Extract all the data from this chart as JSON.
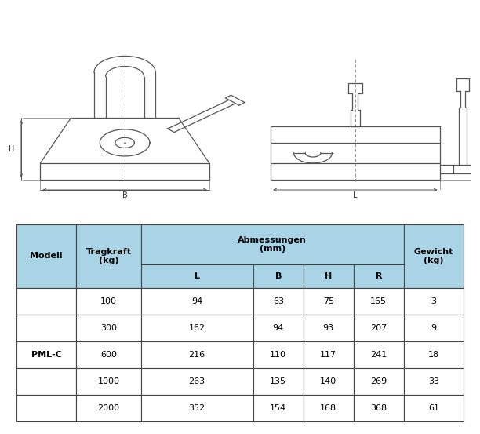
{
  "table_header_bg": "#a8d4e6",
  "table_row_bg": "#ffffff",
  "table_border_color": "#444444",
  "model_label": "PML-C",
  "rows": [
    [
      "100",
      "94",
      "63",
      "75",
      "165",
      "3"
    ],
    [
      "300",
      "162",
      "94",
      "93",
      "207",
      "9"
    ],
    [
      "600",
      "216",
      "110",
      "117",
      "241",
      "18"
    ],
    [
      "1000",
      "263",
      "135",
      "140",
      "269",
      "33"
    ],
    [
      "2000",
      "352",
      "154",
      "168",
      "368",
      "61"
    ]
  ],
  "diagram_line_color": "#555555",
  "diagram_dash_color": "#888888"
}
